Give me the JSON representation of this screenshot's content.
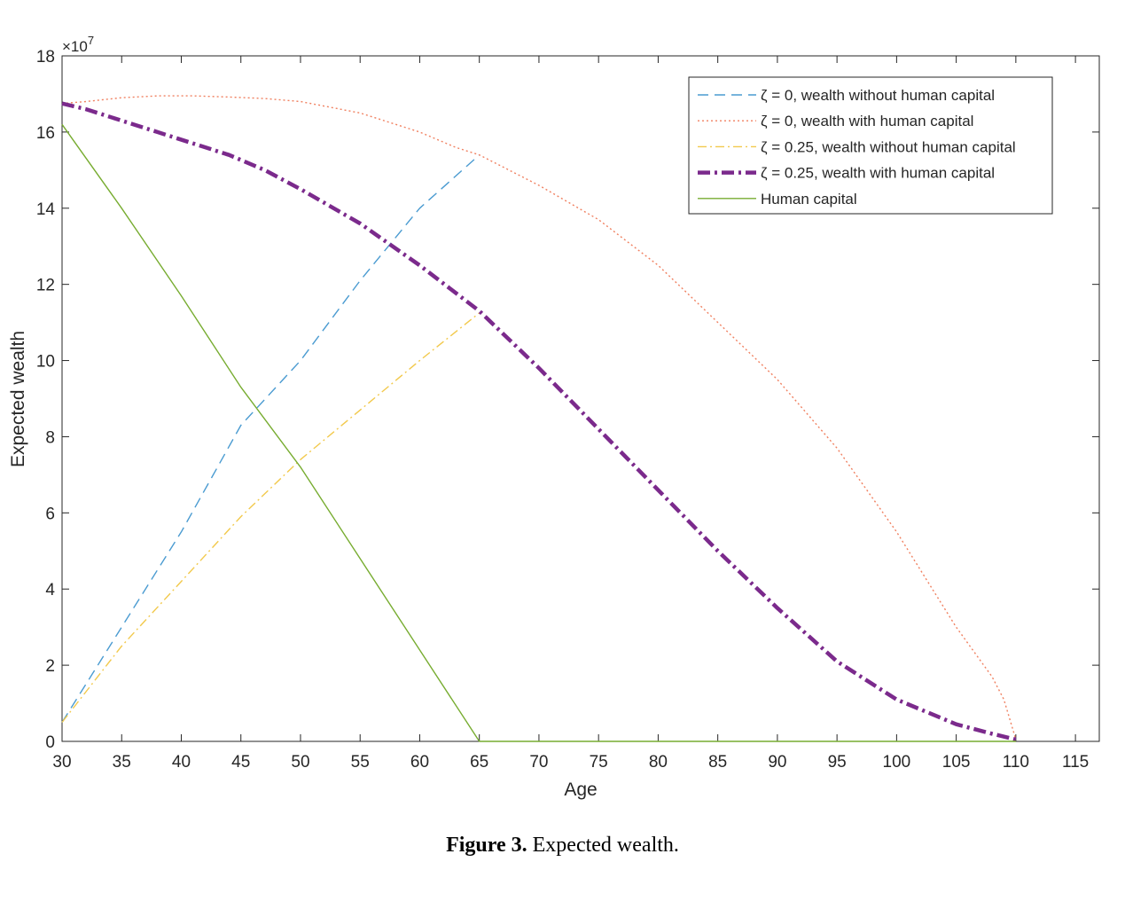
{
  "chart_data": {
    "type": "line",
    "xlabel": "Age",
    "ylabel": "Expected wealth",
    "y_exponent": "×10",
    "y_exponent_power": "7",
    "xlim": [
      30,
      117
    ],
    "ylim": [
      0,
      18
    ],
    "x_ticks": [
      30,
      35,
      40,
      45,
      50,
      55,
      60,
      65,
      70,
      75,
      80,
      85,
      90,
      95,
      100,
      105,
      110,
      115
    ],
    "x_tick_labels": [
      "30",
      "35",
      "40",
      "45",
      "50",
      "55",
      "60",
      "65",
      "70",
      "75",
      "80",
      "85",
      "90",
      "95",
      "100",
      "105",
      "110",
      "115"
    ],
    "y_ticks": [
      0,
      2,
      4,
      6,
      8,
      10,
      12,
      14,
      16,
      18
    ],
    "y_tick_labels": [
      "0",
      "2",
      "4",
      "6",
      "8",
      "10",
      "12",
      "14",
      "16",
      "18"
    ],
    "legend_position": "top-right",
    "series": [
      {
        "name": "ζ = 0, wealth without human capital",
        "color": "#4A9BD1",
        "style": "dashed",
        "x": [
          30,
          35,
          40,
          45,
          50,
          55,
          60,
          65
        ],
        "y": [
          0.5,
          3.0,
          5.5,
          8.3,
          10.0,
          12.1,
          14.0,
          15.4
        ]
      },
      {
        "name": "ζ = 0, wealth with human capital",
        "color": "#F08060",
        "style": "dotted",
        "x": [
          30,
          32,
          35,
          38,
          41,
          44,
          47,
          50,
          55,
          60,
          63,
          65,
          70,
          75,
          80,
          85,
          90,
          95,
          100,
          105,
          108,
          109,
          110
        ],
        "y": [
          16.75,
          16.8,
          16.9,
          16.95,
          16.95,
          16.92,
          16.88,
          16.8,
          16.5,
          16.0,
          15.6,
          15.4,
          14.6,
          13.7,
          12.5,
          11.0,
          9.5,
          7.7,
          5.5,
          3.0,
          1.7,
          1.1,
          0.05
        ]
      },
      {
        "name": "ζ = 0.25, wealth without human capital",
        "color": "#F2C94C",
        "style": "dashdot",
        "x": [
          30,
          35,
          40,
          45,
          50,
          55,
          60,
          65
        ],
        "y": [
          0.5,
          2.5,
          4.2,
          5.9,
          7.4,
          8.7,
          10.0,
          11.25
        ]
      },
      {
        "name": "ζ = 0.25, wealth with human capital",
        "color": "#7B2A8C",
        "style": "dashdot-thick",
        "x": [
          30,
          32,
          35,
          38,
          41,
          44,
          47,
          50,
          55,
          60,
          65,
          70,
          75,
          80,
          85,
          90,
          95,
          100,
          105,
          108,
          110
        ],
        "y": [
          16.75,
          16.6,
          16.3,
          16.0,
          15.7,
          15.4,
          15.0,
          14.5,
          13.6,
          12.5,
          11.3,
          9.8,
          8.2,
          6.6,
          5.0,
          3.5,
          2.1,
          1.1,
          0.45,
          0.2,
          0.05
        ]
      },
      {
        "name": "Human capital",
        "color": "#77AC30",
        "style": "solid",
        "x": [
          30,
          35,
          40,
          45,
          50,
          55,
          60,
          65,
          110
        ],
        "y": [
          16.2,
          14.0,
          11.7,
          9.3,
          7.2,
          4.8,
          2.4,
          0.0,
          0.0
        ]
      }
    ]
  },
  "caption": {
    "label": "Figure 3.",
    "text": " Expected wealth."
  }
}
